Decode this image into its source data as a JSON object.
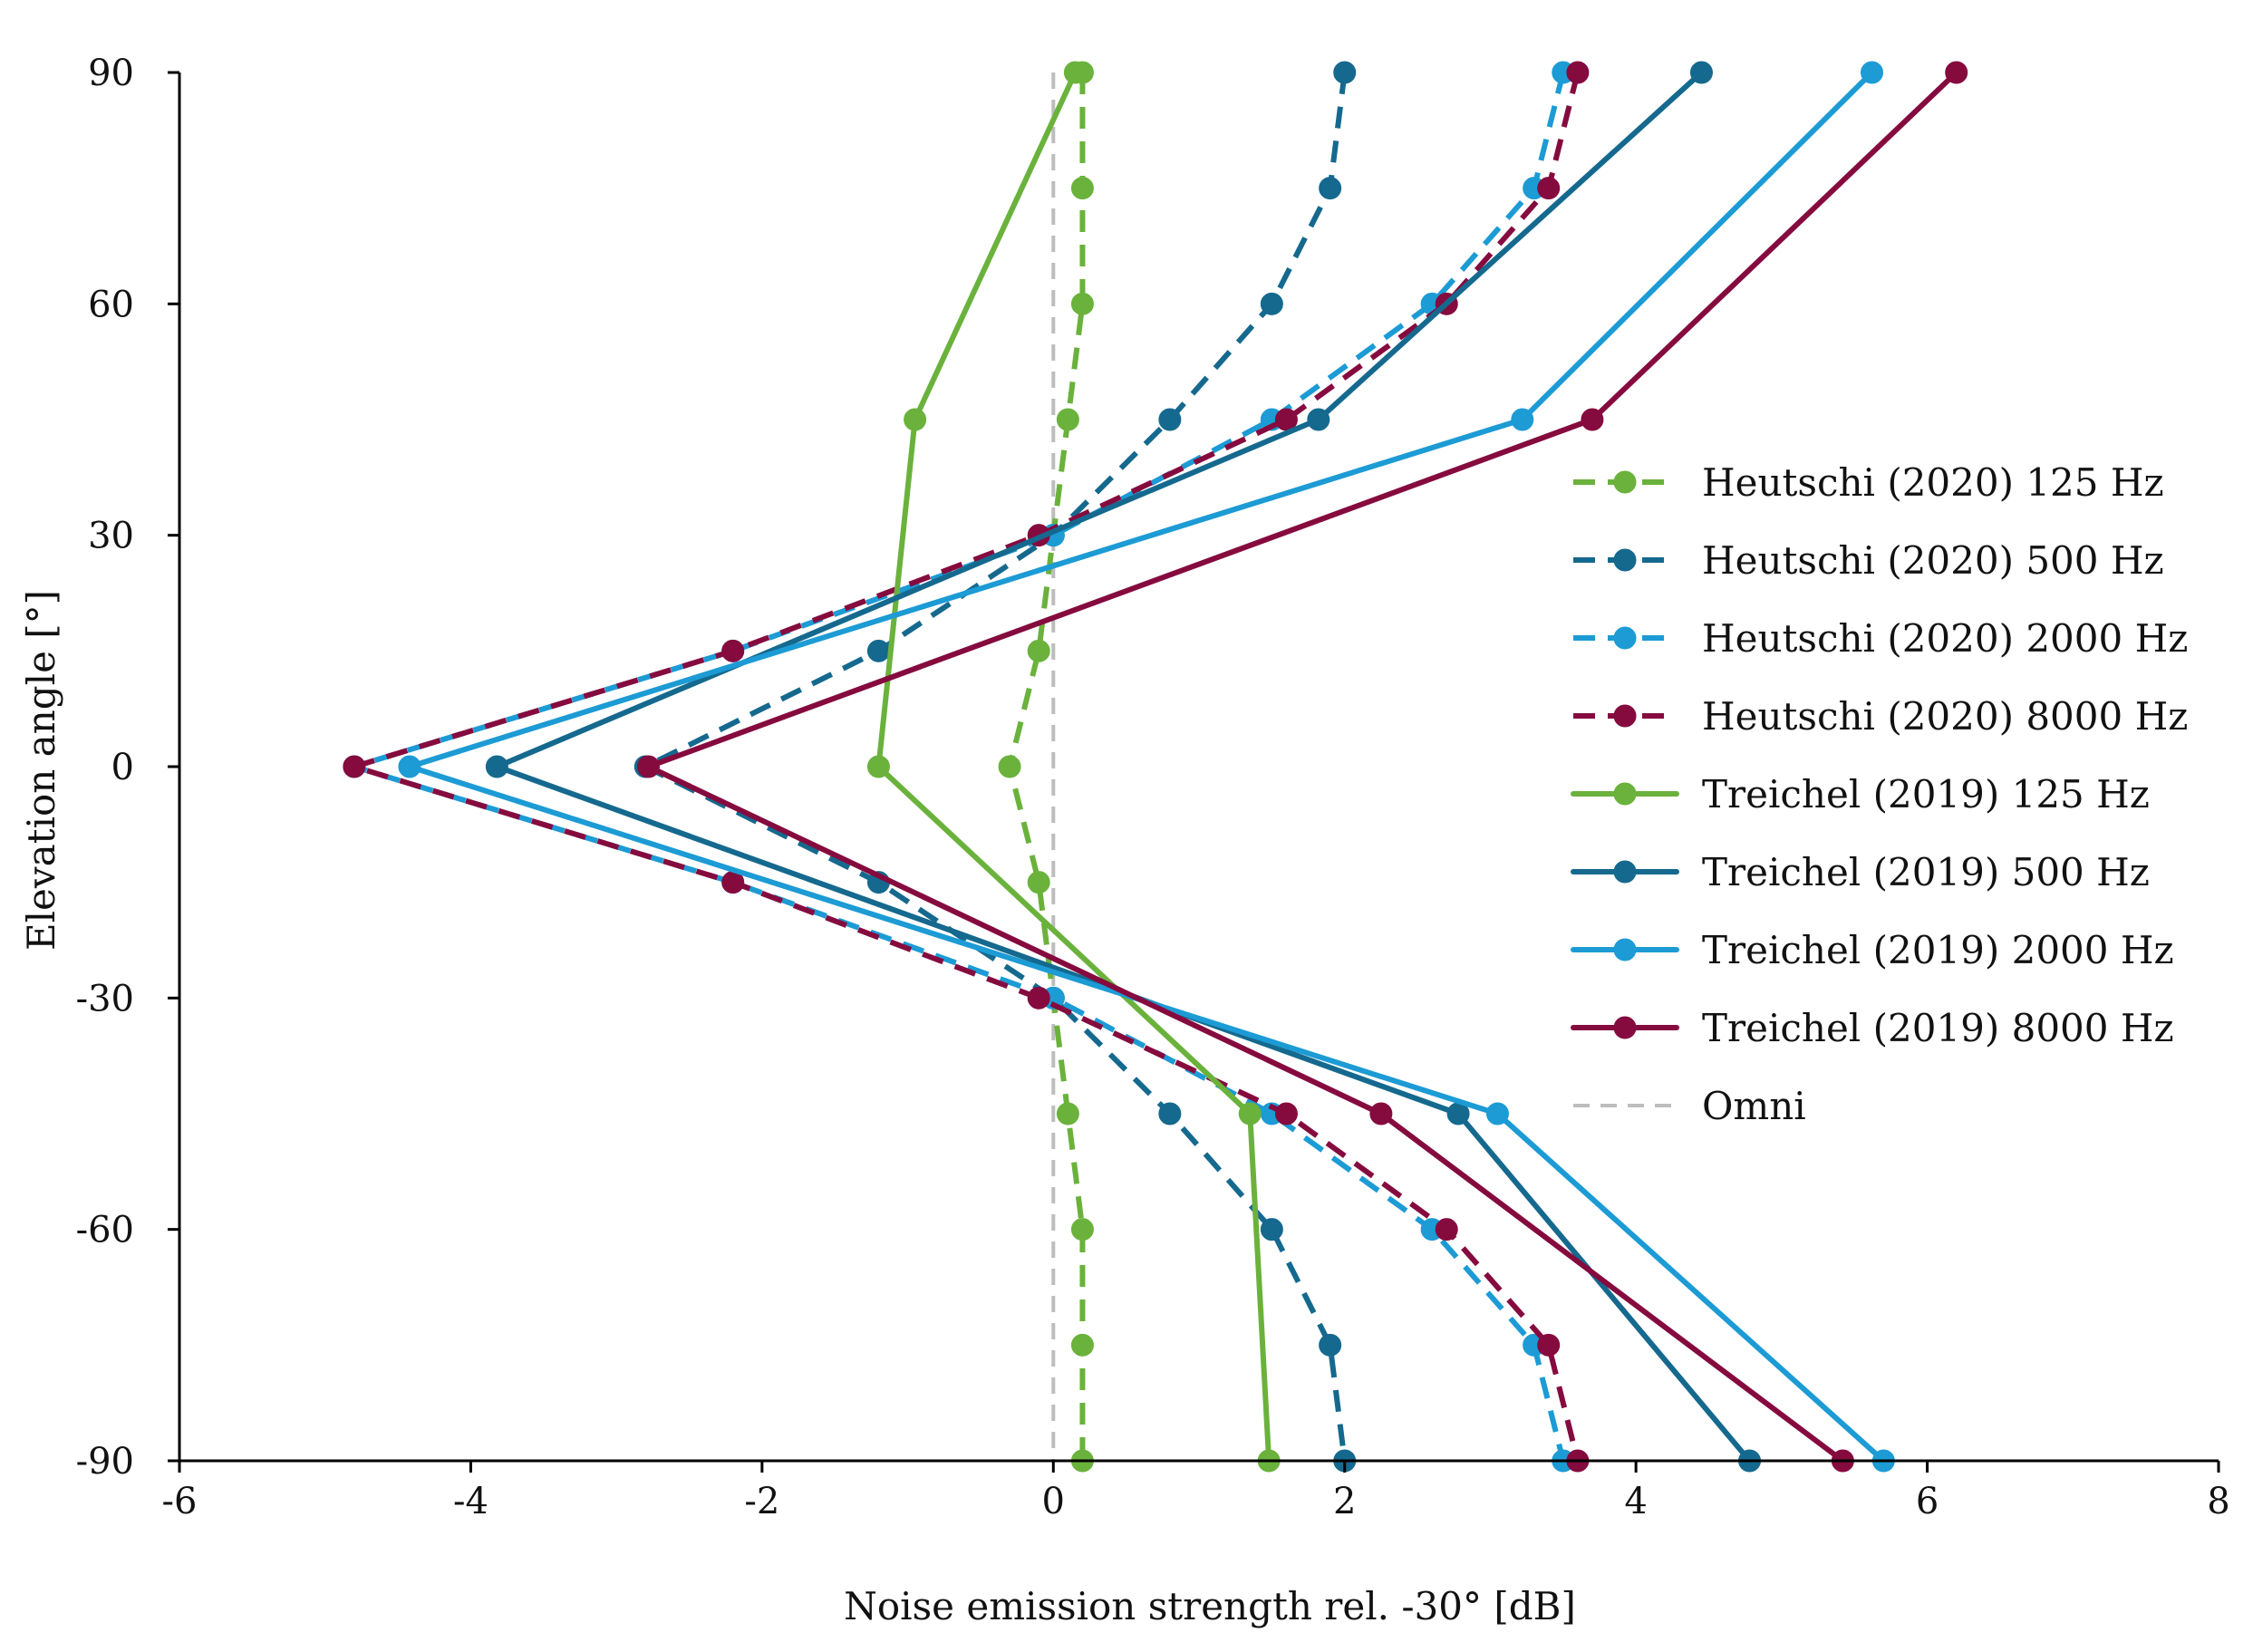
{
  "chart_data": {
    "type": "line",
    "title": "",
    "xlabel": "Noise emission strength rel. -30° [dB]",
    "ylabel": "Elevation angle [°]",
    "xlim": [
      -6,
      8
    ],
    "ylim": [
      -90,
      90
    ],
    "x_ticks": [
      -6,
      -4,
      -2,
      0,
      2,
      4,
      6,
      8
    ],
    "y_ticks": [
      90,
      60,
      30,
      0,
      -30,
      -60,
      -90
    ],
    "x_tick_labels": [
      "-6",
      "-4",
      "-2",
      "0",
      "2",
      "4",
      "6",
      "8"
    ],
    "y_tick_labels": [
      "90",
      "60",
      "30",
      "0",
      "-30",
      "-60",
      "-90"
    ],
    "legend_position": "right-middle",
    "series": [
      {
        "name": "Heutschi (2020) 125 Hz",
        "color": "#6AB23C",
        "dash": "dashed",
        "markers": true,
        "points": [
          {
            "x": 0.2,
            "y": 90
          },
          {
            "x": 0.2,
            "y": 75
          },
          {
            "x": 0.2,
            "y": 60
          },
          {
            "x": 0.1,
            "y": 45
          },
          {
            "x": 0.0,
            "y": 30
          },
          {
            "x": -0.1,
            "y": 15
          },
          {
            "x": -0.3,
            "y": 0
          },
          {
            "x": -0.1,
            "y": -15
          },
          {
            "x": 0.0,
            "y": -30
          },
          {
            "x": 0.1,
            "y": -45
          },
          {
            "x": 0.2,
            "y": -60
          },
          {
            "x": 0.2,
            "y": -75
          },
          {
            "x": 0.2,
            "y": -90
          }
        ]
      },
      {
        "name": "Heutschi (2020) 500 Hz",
        "color": "#15698E",
        "dash": "dashed",
        "markers": true,
        "points": [
          {
            "x": 2.0,
            "y": 90
          },
          {
            "x": 1.9,
            "y": 75
          },
          {
            "x": 1.5,
            "y": 60
          },
          {
            "x": 0.8,
            "y": 45
          },
          {
            "x": 0.0,
            "y": 30
          },
          {
            "x": -1.2,
            "y": 15
          },
          {
            "x": -2.8,
            "y": 0
          },
          {
            "x": -1.2,
            "y": -15
          },
          {
            "x": 0.0,
            "y": -30
          },
          {
            "x": 0.8,
            "y": -45
          },
          {
            "x": 1.5,
            "y": -60
          },
          {
            "x": 1.9,
            "y": -75
          },
          {
            "x": 2.0,
            "y": -90
          }
        ]
      },
      {
        "name": "Heutschi (2020) 2000 Hz",
        "color": "#1C9BD5",
        "dash": "dashed",
        "markers": true,
        "points": [
          {
            "x": 3.5,
            "y": 90
          },
          {
            "x": 3.3,
            "y": 75
          },
          {
            "x": 2.6,
            "y": 60
          },
          {
            "x": 1.5,
            "y": 45
          },
          {
            "x": 0.0,
            "y": 30
          },
          {
            "x": -2.2,
            "y": 15
          },
          {
            "x": -4.8,
            "y": 0
          },
          {
            "x": -2.2,
            "y": -15
          },
          {
            "x": 0.0,
            "y": -30
          },
          {
            "x": 1.5,
            "y": -45
          },
          {
            "x": 2.6,
            "y": -60
          },
          {
            "x": 3.3,
            "y": -75
          },
          {
            "x": 3.5,
            "y": -90
          }
        ]
      },
      {
        "name": "Heutschi (2020) 8000 Hz",
        "color": "#850B3F",
        "dash": "dashed",
        "markers": true,
        "points": [
          {
            "x": 3.6,
            "y": 90
          },
          {
            "x": 3.4,
            "y": 75
          },
          {
            "x": 2.7,
            "y": 60
          },
          {
            "x": 1.6,
            "y": 45
          },
          {
            "x": -0.1,
            "y": 30
          },
          {
            "x": -2.2,
            "y": 15
          },
          {
            "x": -4.8,
            "y": 0
          },
          {
            "x": -2.2,
            "y": -15
          },
          {
            "x": -0.1,
            "y": -30
          },
          {
            "x": 1.6,
            "y": -45
          },
          {
            "x": 2.7,
            "y": -60
          },
          {
            "x": 3.4,
            "y": -75
          },
          {
            "x": 3.6,
            "y": -90
          }
        ]
      },
      {
        "name": "Treichel (2019) 125 Hz",
        "color": "#6AB23C",
        "dash": "solid",
        "markers": true,
        "points": [
          {
            "x": 0.15,
            "y": 90
          },
          {
            "x": -0.95,
            "y": 45
          },
          {
            "x": -1.2,
            "y": 0
          },
          {
            "x": 1.35,
            "y": -45
          },
          {
            "x": 1.48,
            "y": -90
          }
        ]
      },
      {
        "name": "Treichel (2019) 500 Hz",
        "color": "#15698E",
        "dash": "solid",
        "markers": true,
        "points": [
          {
            "x": 4.45,
            "y": 90
          },
          {
            "x": 1.82,
            "y": 45
          },
          {
            "x": -3.82,
            "y": 0
          },
          {
            "x": 2.78,
            "y": -45
          },
          {
            "x": 4.78,
            "y": -90
          }
        ]
      },
      {
        "name": "Treichel (2019) 2000 Hz",
        "color": "#1C9BD5",
        "dash": "solid",
        "markers": true,
        "points": [
          {
            "x": 5.62,
            "y": 90
          },
          {
            "x": 3.22,
            "y": 45
          },
          {
            "x": -4.42,
            "y": 0
          },
          {
            "x": 3.05,
            "y": -45
          },
          {
            "x": 5.7,
            "y": -90
          }
        ]
      },
      {
        "name": "Treichel (2019) 8000 Hz",
        "color": "#850B3F",
        "dash": "solid",
        "markers": true,
        "points": [
          {
            "x": 6.2,
            "y": 90
          },
          {
            "x": 3.7,
            "y": 45
          },
          {
            "x": -2.78,
            "y": 0
          },
          {
            "x": 2.25,
            "y": -45
          },
          {
            "x": 5.42,
            "y": -90
          }
        ]
      },
      {
        "name": "Omni",
        "color": "#BDBDBD",
        "dash": "dashed",
        "markers": false,
        "points": [
          {
            "x": 0,
            "y": 90
          },
          {
            "x": 0,
            "y": -90
          }
        ]
      }
    ]
  }
}
